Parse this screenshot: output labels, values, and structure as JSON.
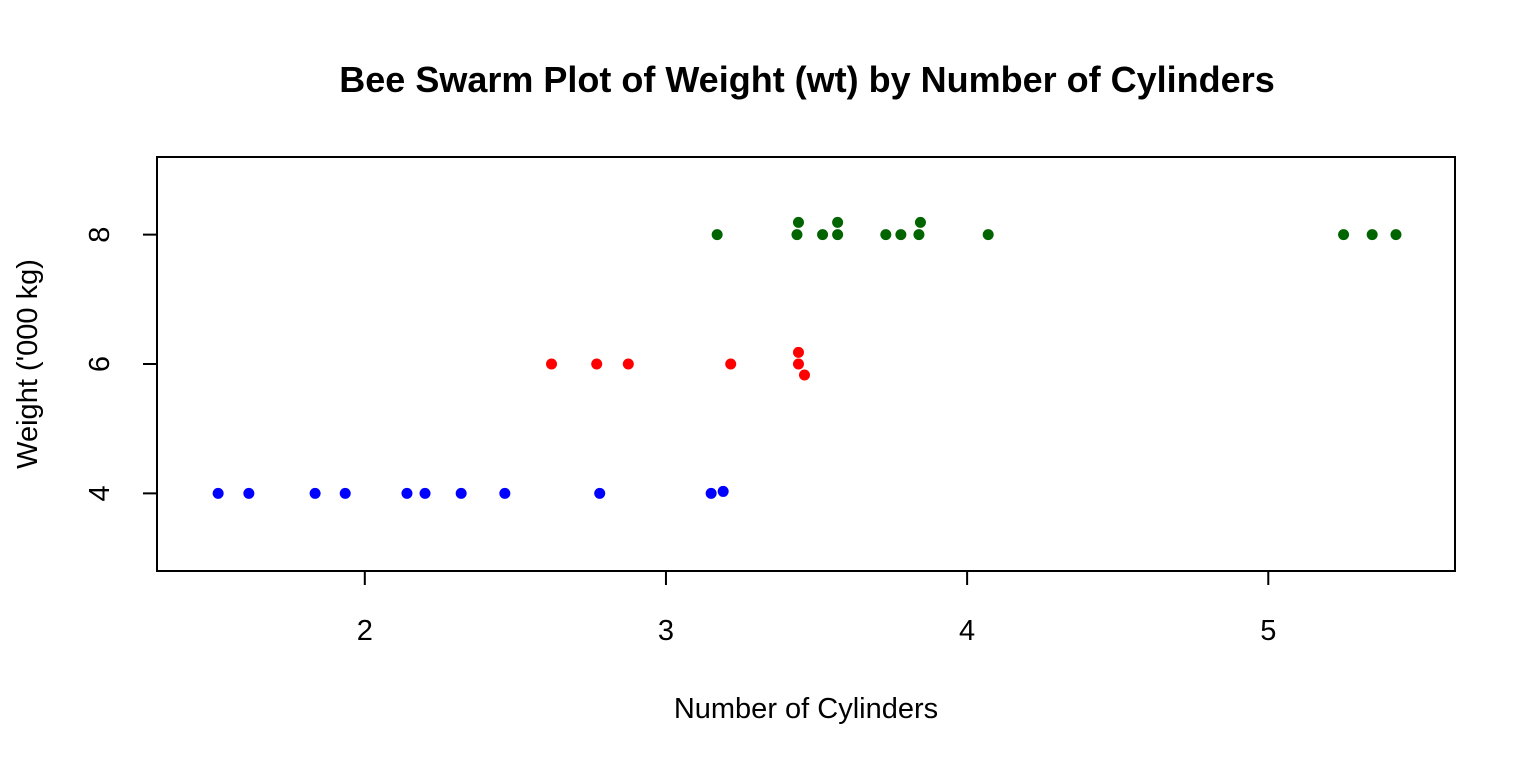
{
  "chart_data": {
    "type": "scatter",
    "title": "Bee Swarm Plot of Weight (wt) by Number of Cylinders",
    "xlabel": "Number of Cylinders",
    "ylabel": "Weight ('000 kg)",
    "xlim": [
      1.31,
      5.62
    ],
    "ylim": [
      2.8,
      9.2
    ],
    "x_ticks": [
      2,
      3,
      4,
      5
    ],
    "y_ticks": [
      4,
      6,
      8
    ],
    "grid": false,
    "legend": "none",
    "series": [
      {
        "color": "#0000ff",
        "points": [
          {
            "x": 1.513,
            "y": 4.0
          },
          {
            "x": 1.615,
            "y": 4.0
          },
          {
            "x": 1.835,
            "y": 4.0
          },
          {
            "x": 1.935,
            "y": 4.0
          },
          {
            "x": 2.14,
            "y": 4.0
          },
          {
            "x": 2.2,
            "y": 4.0
          },
          {
            "x": 2.32,
            "y": 4.0
          },
          {
            "x": 2.465,
            "y": 4.0
          },
          {
            "x": 2.78,
            "y": 4.0
          },
          {
            "x": 3.15,
            "y": 4.0
          },
          {
            "x": 3.19,
            "y": 4.03
          }
        ]
      },
      {
        "color": "#ff0000",
        "points": [
          {
            "x": 2.62,
            "y": 6.0
          },
          {
            "x": 2.77,
            "y": 6.0
          },
          {
            "x": 2.875,
            "y": 6.0
          },
          {
            "x": 3.215,
            "y": 6.0
          },
          {
            "x": 3.44,
            "y": 6.18
          },
          {
            "x": 3.44,
            "y": 6.0
          },
          {
            "x": 3.46,
            "y": 5.83
          }
        ]
      },
      {
        "color": "#006400",
        "points": [
          {
            "x": 3.17,
            "y": 8.0
          },
          {
            "x": 3.435,
            "y": 8.0
          },
          {
            "x": 3.44,
            "y": 8.19
          },
          {
            "x": 3.52,
            "y": 8.0
          },
          {
            "x": 3.57,
            "y": 8.0
          },
          {
            "x": 3.57,
            "y": 8.19
          },
          {
            "x": 3.73,
            "y": 8.0
          },
          {
            "x": 3.78,
            "y": 8.0
          },
          {
            "x": 3.84,
            "y": 8.0
          },
          {
            "x": 3.845,
            "y": 8.19
          },
          {
            "x": 4.07,
            "y": 8.0
          },
          {
            "x": 5.25,
            "y": 8.0
          },
          {
            "x": 5.345,
            "y": 8.0
          },
          {
            "x": 5.424,
            "y": 8.0
          }
        ]
      }
    ]
  }
}
